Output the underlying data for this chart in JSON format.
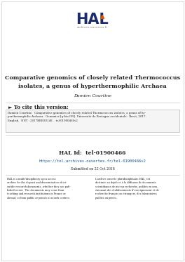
{
  "bg_color": "#ffffff",
  "border_color": "#cccccc",
  "title_line1": "Comparative genomics of closely related Thermococcus",
  "title_line2": "isolates, a genus of hyperthermophilic Archaea",
  "author": "Damien Courtine",
  "cite_header": "► To cite this version:",
  "cite_text": "Damien Courtine.  Comparative genomics of closely related Thermococcus isolates, a genus of hy-\nperthermophilic Archaea.  Genomics [q-bio.GN]. Université de Bretagne occidentale - Brest, 2017.\nEnglish.  NNT : 2017BRES0148 .  tel-01900466v2",
  "hal_id_label": "HAL Id:  tel-01900466",
  "hal_url": "https://tel.archives-ouvertes.fr/tel-01900466v2",
  "submitted": "Submitted on 22 Oct 2018",
  "left_text": "HAL is a multi-disciplinary open access\narchive for the deposit and dissemination of sci-\nentific research documents, whether they are pub-\nlished or not.  The documents may come from\nteaching and research institutions in France or\nabroad, or from public or private research centres.",
  "right_text": "L’archive ouverte pluridisciplinaire HAL, est\ndestinée au dépôt et à la diffusion de documents\nscientifiques de niveau recherche, publiés ou non,\némanant des établissements d’enseignement et de\nrecherche français ou étrangers, des laboratoires\npubliés ou privés.",
  "hal_navy": "#1b2a6b",
  "hal_orange": "#e05000",
  "hal_text_color": "#222222",
  "hal_url_color": "#1a5ca0",
  "cite_box_bg": "#f5f5f5",
  "cite_box_border": "#aaaaaa",
  "sep_color": "#bbbbbb",
  "archives_color": "#888888"
}
